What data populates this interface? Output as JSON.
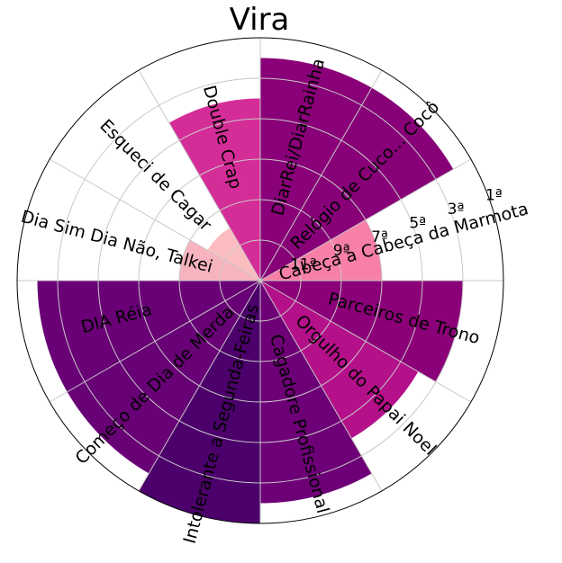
{
  "chart_data": {
    "type": "polar-bar",
    "title": "Vira",
    "rlabels": [
      "1ª",
      "3ª",
      "5ª",
      "7ª",
      "9ª",
      "11ª"
    ],
    "rmax": 12,
    "grid": true,
    "bars": [
      {
        "label": "Cabeça a Cabeça da Marmota",
        "value": 6,
        "color": "#f77fa8"
      },
      {
        "label": "Relógio de Cuco... Cocô",
        "value": 11,
        "color": "#870078"
      },
      {
        "label": "DiarRei/DiarRainha",
        "value": 11,
        "color": "#890078"
      },
      {
        "label": "Double Crap",
        "value": 9,
        "color": "#d52d98"
      },
      {
        "label": "Esqueci de Cagar",
        "value": 3,
        "color": "#fbbdc0"
      },
      {
        "label": "Dia Sim Dia Não, Talkei",
        "value": 4,
        "color": "#f8b4be"
      },
      {
        "label": "DIA Réia",
        "value": 11,
        "color": "#690076"
      },
      {
        "label": "Começo de Dia de Merda",
        "value": 11,
        "color": "#680076"
      },
      {
        "label": "Intolerante a Segunda-Feiras",
        "value": 12,
        "color": "#4c006b"
      },
      {
        "label": "Cagadore Profissional",
        "value": 11,
        "color": "#6e0077"
      },
      {
        "label": "Orgulho do Papai Noel",
        "value": 9,
        "color": "#b4108a"
      },
      {
        "label": "Parceiros de Trono",
        "value": 10,
        "color": "#8b0078"
      }
    ]
  }
}
